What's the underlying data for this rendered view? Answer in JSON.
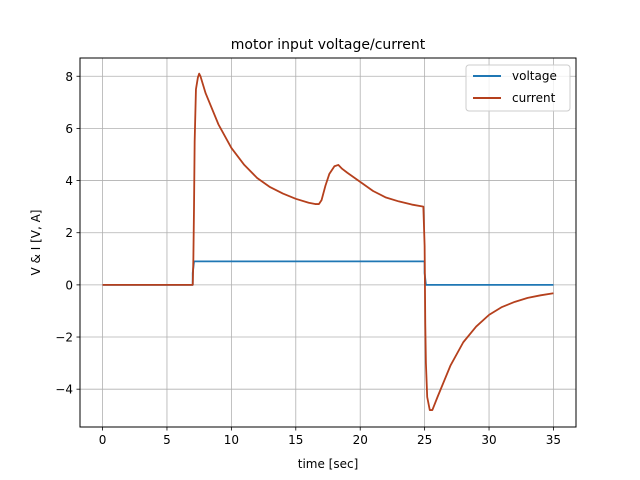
{
  "chart_data": {
    "type": "line",
    "title": "motor input voltage/current",
    "xlabel": "time [sec]",
    "ylabel": "V & I [V, A]",
    "xlim": [
      -1.75,
      36.75
    ],
    "ylim": [
      -5.45,
      8.7
    ],
    "xticks": [
      0,
      5,
      10,
      15,
      20,
      25,
      30,
      35
    ],
    "yticks": [
      -4,
      -2,
      0,
      2,
      4,
      6,
      8
    ],
    "grid": true,
    "legend_position": "top-right",
    "series": [
      {
        "name": "voltage",
        "color": "#1f77b4",
        "x": [
          0,
          7.0,
          7.0,
          7.1,
          25.0,
          25.0,
          25.1,
          35
        ],
        "y": [
          0,
          0,
          0.45,
          0.9,
          0.9,
          0.45,
          0,
          0
        ]
      },
      {
        "name": "current",
        "color": "#b5401d",
        "x": [
          0,
          7.0,
          7.05,
          7.1,
          7.15,
          7.25,
          7.4,
          7.5,
          7.6,
          8.0,
          9.0,
          10.0,
          11.0,
          12.0,
          13.0,
          14.0,
          15.0,
          16.0,
          16.5,
          16.8,
          17.0,
          17.3,
          17.6,
          18.0,
          18.3,
          18.6,
          19.0,
          20.0,
          21.0,
          22.0,
          23.0,
          24.0,
          24.9,
          25.0,
          25.05,
          25.1,
          25.2,
          25.4,
          25.6,
          26.0,
          27.0,
          28.0,
          29.0,
          30.0,
          31.0,
          32.0,
          33.0,
          34.0,
          35.0
        ],
        "y": [
          0,
          0,
          1.0,
          3.0,
          5.5,
          7.5,
          7.95,
          8.1,
          8.0,
          7.35,
          6.15,
          5.25,
          4.6,
          4.1,
          3.75,
          3.5,
          3.3,
          3.15,
          3.1,
          3.1,
          3.25,
          3.8,
          4.25,
          4.55,
          4.6,
          4.45,
          4.3,
          3.95,
          3.6,
          3.35,
          3.2,
          3.08,
          3.0,
          1.5,
          -1.5,
          -3.0,
          -4.3,
          -4.8,
          -4.8,
          -4.3,
          -3.1,
          -2.2,
          -1.6,
          -1.15,
          -0.85,
          -0.65,
          -0.5,
          -0.4,
          -0.32
        ]
      }
    ]
  }
}
